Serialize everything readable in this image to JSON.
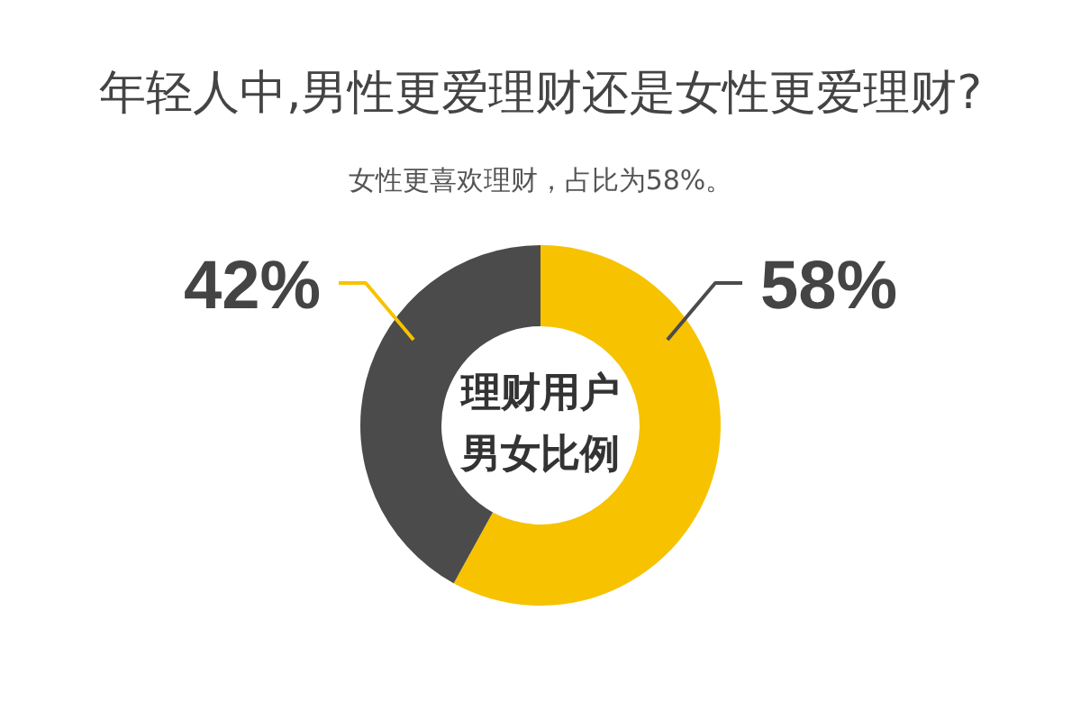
{
  "chart_data": {
    "type": "donut",
    "title": "年轻人中,男性更爱理财还是女性更爱理财?",
    "subtitle": "女性更喜欢理财，占比为58%。",
    "categories": [
      null,
      null
    ],
    "values": [
      58,
      42
    ],
    "colors": [
      "#f7c200",
      "#4b4b4b"
    ],
    "value_labels": [
      "58%",
      "42%"
    ],
    "annotations": [
      "理财用户",
      "男女比例"
    ]
  }
}
